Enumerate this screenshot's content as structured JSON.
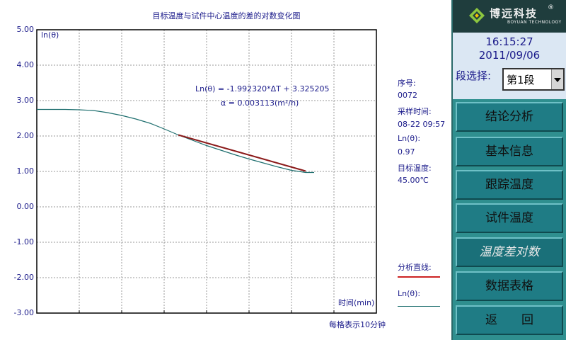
{
  "chart_title": "目标温度与试件中心温度的差的对数变化图",
  "chart_data": {
    "type": "line",
    "title": "目标温度与试件中心温度的差的对数变化图",
    "ylabel": "ln(θ)",
    "xlabel": "时间(min)",
    "ylim": [
      -3.0,
      5.0
    ],
    "yticks": [
      "5.00",
      "4.00",
      "3.00",
      "2.00",
      "1.00",
      "0.00",
      "-1.00",
      "-2.00",
      "-3.00"
    ],
    "grid": true,
    "grid_note": "每格表示10分钟",
    "series": [
      {
        "name": "Ln(θ):",
        "color": "#1f6f6f",
        "x": [
          0,
          5,
          10,
          15,
          20,
          25,
          30,
          35,
          40,
          45,
          50,
          55,
          60,
          65,
          70,
          75,
          80,
          85,
          90,
          95,
          98
        ],
        "y": [
          2.75,
          2.75,
          2.75,
          2.74,
          2.72,
          2.66,
          2.58,
          2.48,
          2.36,
          2.2,
          2.03,
          1.88,
          1.73,
          1.6,
          1.47,
          1.35,
          1.24,
          1.13,
          1.03,
          0.97,
          0.97
        ]
      },
      {
        "name": "分析直线:",
        "color": "#8b1a1a",
        "x": [
          50,
          95
        ],
        "y": [
          2.03,
          1.01
        ]
      }
    ],
    "annotations": [
      "Ln(θ) = -1.992320*ΔT + 3.325205",
      "α  = 0.003113(m²/h)"
    ]
  },
  "info": {
    "seq_label": "序号:",
    "seq_value": "0072",
    "time_label": "采样时间:",
    "time_value": "08-22 09:57",
    "ln_label": "Ln(θ):",
    "ln_value": "0.97",
    "target_label": "目标温度:",
    "target_value": "45.00℃",
    "legend_fit": "分析直线:",
    "legend_ln": "Ln(θ):"
  },
  "sidebar": {
    "logo_cn": "博远科技",
    "logo_reg": "®",
    "logo_en": "BOYUAN TECHNOLOGY",
    "time": "16:15:27",
    "date": "2011/09/06",
    "segment_label": "段选择:",
    "segment_value": "第1段",
    "buttons": [
      "结论分析",
      "基本信息",
      "跟踪温度",
      "试件温度",
      "温度差对数",
      "数据表格",
      "返　　回"
    ]
  },
  "colors": {
    "sidebar_bg": "#2f8f8f",
    "button_bg": "#1f7c85",
    "fit_line": "#8b1a1a",
    "data_line": "#1f6f6f",
    "text": "#1a1a8a"
  }
}
